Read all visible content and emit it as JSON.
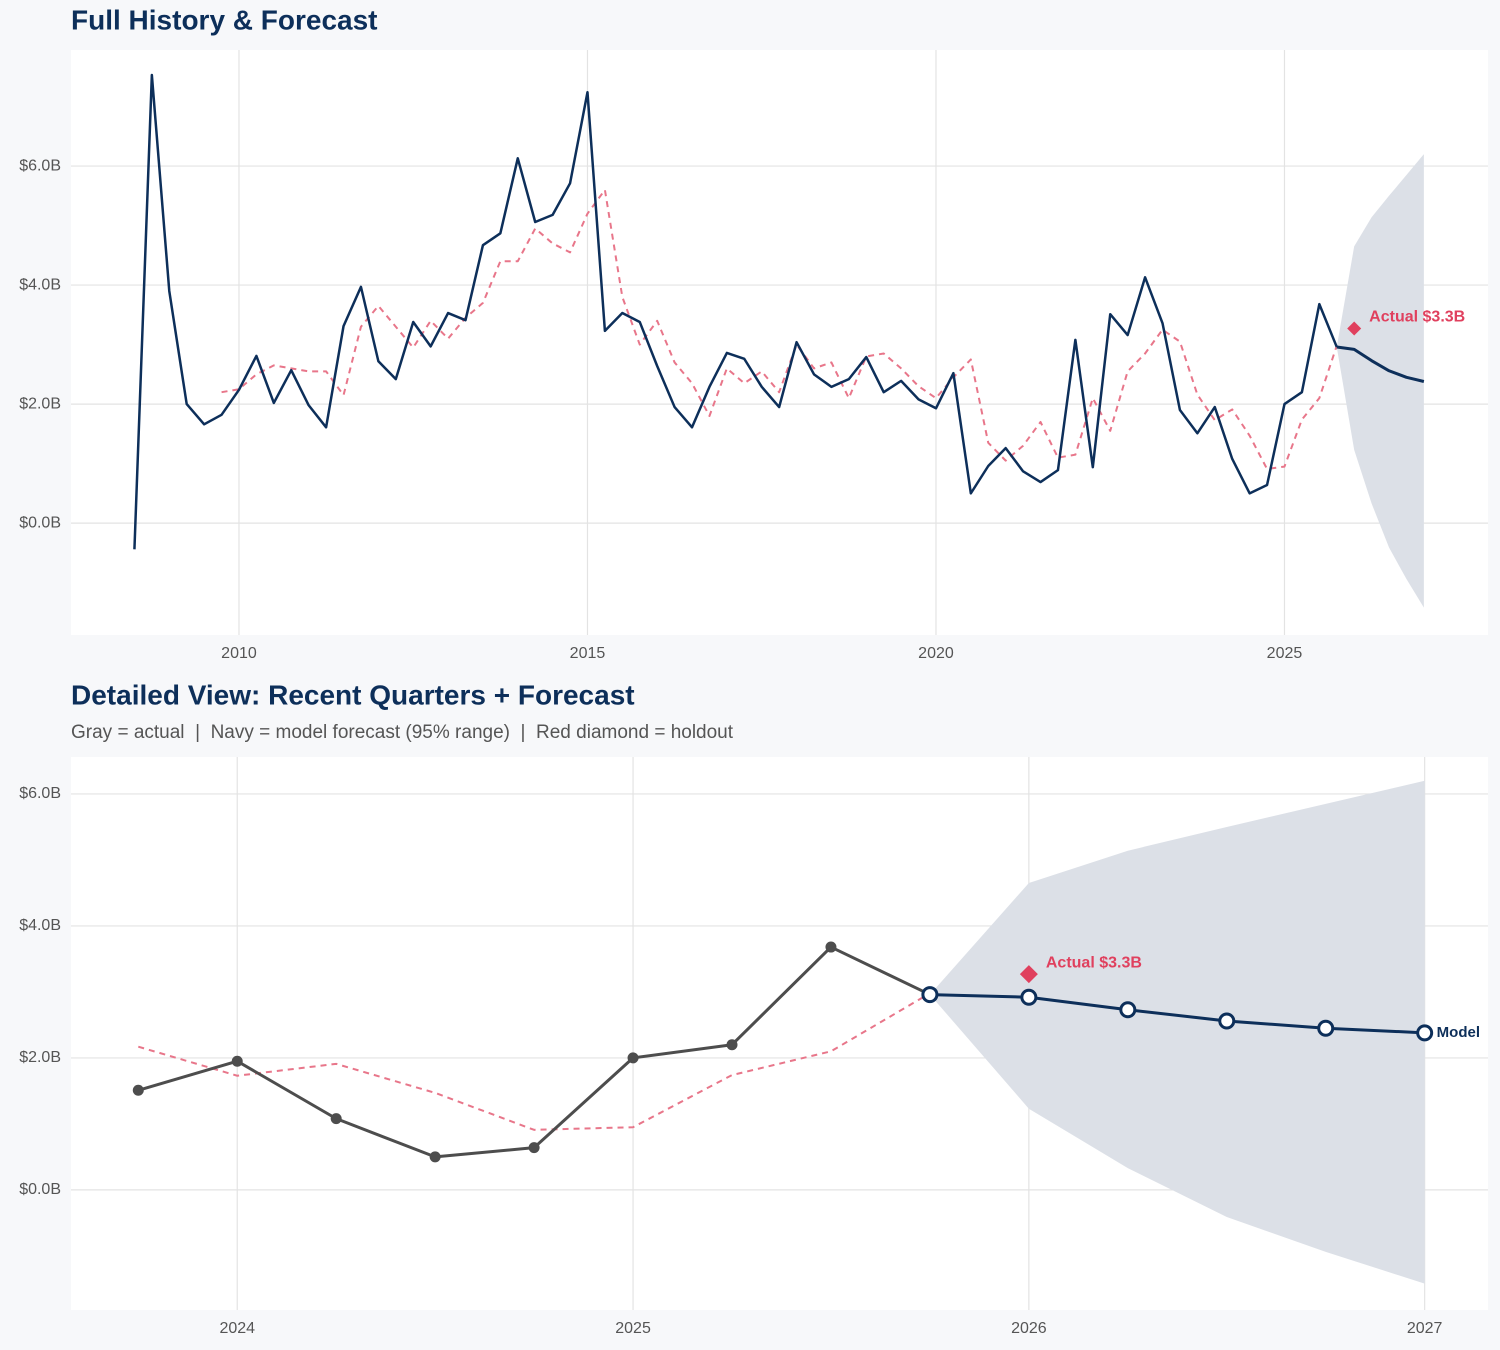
{
  "chart_data": [
    {
      "type": "line",
      "title": "Full History & Forecast",
      "xlim": [
        2007.59,
        2027.92
      ],
      "xticks": [
        2010,
        2015,
        2020,
        2025
      ],
      "ylim": [
        -1.88,
        7.95
      ],
      "yticks": [
        {
          "value": 0,
          "label": "$0.0B"
        },
        {
          "value": 2,
          "label": "$2.0B"
        },
        {
          "value": 4,
          "label": "$4.0B"
        },
        {
          "value": 6,
          "label": "$6.0B"
        }
      ],
      "grid": true,
      "band": {
        "color": "#dce0e7",
        "x": [
          2025.75,
          2026,
          2026.25,
          2026.5,
          2026.75,
          2027
        ],
        "upper": [
          2.96,
          4.65,
          5.14,
          5.5,
          5.85,
          6.2
        ],
        "lower": [
          2.96,
          1.23,
          0.33,
          -0.41,
          -0.94,
          -1.42
        ]
      },
      "series": [
        {
          "color": "#e8768a",
          "dash": true,
          "width": 2,
          "x": [
            2008.5,
            2008.75,
            2009,
            2009.25,
            2009.5,
            2009.75,
            2010,
            2010.25,
            2010.5,
            2010.75,
            2011,
            2011.25,
            2011.5,
            2011.75,
            2012,
            2012.25,
            2012.5,
            2012.75,
            2013,
            2013.25,
            2013.5,
            2013.75,
            2014,
            2014.25,
            2014.5,
            2014.75,
            2015,
            2015.25,
            2015.5,
            2015.75,
            2016,
            2016.25,
            2016.5,
            2016.75,
            2017,
            2017.25,
            2017.5,
            2017.75,
            2018,
            2018.25,
            2018.5,
            2018.75,
            2019,
            2019.25,
            2019.5,
            2019.75,
            2020,
            2020.25,
            2020.5,
            2020.75,
            2021,
            2021.25,
            2021.5,
            2021.75,
            2022,
            2022.25,
            2022.5,
            2022.75,
            2023,
            2023.25,
            2023.5,
            2023.75,
            2024,
            2024.25,
            2024.5,
            2024.75,
            2025,
            2025.25,
            2025.5,
            2025.75
          ],
          "values": [
            null,
            null,
            null,
            null,
            null,
            2.2,
            2.25,
            2.5,
            2.65,
            2.6,
            2.55,
            2.55,
            2.15,
            3.3,
            3.65,
            3.3,
            2.95,
            3.4,
            3.1,
            3.45,
            3.7,
            4.4,
            4.4,
            4.95,
            4.7,
            4.55,
            5.2,
            5.6,
            3.8,
            3.0,
            3.4,
            2.7,
            2.35,
            1.8,
            2.6,
            2.35,
            2.55,
            2.2,
            3.0,
            2.6,
            2.7,
            2.1,
            2.8,
            2.85,
            2.6,
            2.3,
            2.1,
            2.45,
            2.75,
            1.35,
            1.05,
            1.3,
            1.7,
            1.1,
            1.15,
            2.1,
            1.55,
            2.55,
            2.85,
            3.25,
            3.05,
            2.16,
            1.73,
            1.91,
            1.47,
            0.91,
            0.95,
            1.74,
            2.1,
            2.98
          ]
        },
        {
          "color": "#0d2f5a",
          "width": 2.5,
          "x": [
            2008.5,
            2008.75,
            2009,
            2009.25,
            2009.5,
            2009.75,
            2010,
            2010.25,
            2010.5,
            2010.75,
            2011,
            2011.25,
            2011.5,
            2011.75,
            2012,
            2012.25,
            2012.5,
            2012.75,
            2013,
            2013.25,
            2013.5,
            2013.75,
            2014,
            2014.25,
            2014.5,
            2014.75,
            2015,
            2015.25,
            2015.5,
            2015.75,
            2016,
            2016.25,
            2016.5,
            2016.75,
            2017,
            2017.25,
            2017.5,
            2017.75,
            2018,
            2018.25,
            2018.5,
            2018.75,
            2019,
            2019.25,
            2019.5,
            2019.75,
            2020,
            2020.25,
            2020.5,
            2020.75,
            2021,
            2021.25,
            2021.5,
            2021.75,
            2022,
            2022.25,
            2022.5,
            2022.75,
            2023,
            2023.25,
            2023.5,
            2023.75,
            2024,
            2024.25,
            2024.5,
            2024.75,
            2025,
            2025.25,
            2025.5,
            2025.75
          ],
          "values": [
            -0.44,
            7.53,
            3.9,
            2.0,
            1.66,
            1.82,
            2.24,
            2.81,
            2.02,
            2.57,
            1.98,
            1.61,
            3.31,
            3.97,
            2.72,
            2.42,
            3.38,
            2.97,
            3.53,
            3.41,
            4.67,
            4.87,
            6.13,
            5.06,
            5.18,
            5.71,
            7.24,
            3.23,
            3.53,
            3.38,
            2.64,
            1.95,
            1.61,
            2.29,
            2.86,
            2.76,
            2.29,
            1.95,
            3.04,
            2.5,
            2.29,
            2.42,
            2.79,
            2.2,
            2.39,
            2.08,
            1.93,
            2.52,
            0.5,
            0.96,
            1.26,
            0.87,
            0.69,
            0.89,
            3.08,
            0.94,
            3.51,
            3.16,
            4.13,
            3.36,
            1.9,
            1.51,
            1.95,
            1.08,
            0.5,
            0.64,
            2.0,
            2.2,
            3.68,
            2.96
          ]
        },
        {
          "color": "#0d2f5a",
          "width": 3,
          "x": [
            2025.75,
            2026,
            2026.25,
            2026.5,
            2026.75,
            2027
          ],
          "values": [
            2.96,
            2.92,
            2.73,
            2.56,
            2.45,
            2.38
          ]
        }
      ],
      "holdout": {
        "x": 2026,
        "value": 3.27,
        "color": "#e0405e",
        "label": "Actual $3.3B"
      }
    },
    {
      "type": "line",
      "title": "Detailed View: Recent Quarters + Forecast",
      "subtitle": "Gray = actual  |  Navy = model forecast (95% range)  |  Red diamond = holdout",
      "xlim": [
        2023.58,
        2027.16
      ],
      "xticks": [
        2024,
        2025,
        2026,
        2027
      ],
      "ylim": [
        -1.82,
        6.56
      ],
      "yticks": [
        {
          "value": 0,
          "label": "$0.0B"
        },
        {
          "value": 2,
          "label": "$2.0B"
        },
        {
          "value": 4,
          "label": "$4.0B"
        },
        {
          "value": 6,
          "label": "$6.0B"
        }
      ],
      "grid": true,
      "band": {
        "color": "#dce0e7",
        "x": [
          2025.75,
          2026,
          2026.25,
          2026.5,
          2026.75,
          2027
        ],
        "upper": [
          2.96,
          4.65,
          5.14,
          5.5,
          5.85,
          6.2
        ],
        "lower": [
          2.96,
          1.23,
          0.33,
          -0.41,
          -0.94,
          -1.42
        ]
      },
      "series": [
        {
          "color": "#e8768a",
          "dash": true,
          "width": 2,
          "x": [
            2023.75,
            2024,
            2024.25,
            2024.5,
            2024.75,
            2025,
            2025.25,
            2025.5,
            2025.75
          ],
          "values": [
            2.17,
            1.73,
            1.91,
            1.47,
            0.91,
            0.95,
            1.74,
            2.1,
            2.98
          ]
        },
        {
          "color": "#4d4d4d",
          "width": 3,
          "markers": "filled",
          "x": [
            2023.75,
            2024,
            2024.25,
            2024.5,
            2024.75,
            2025,
            2025.25,
            2025.5,
            2025.75
          ],
          "values": [
            1.51,
            1.95,
            1.08,
            0.5,
            0.64,
            2.0,
            2.2,
            3.68,
            2.96
          ]
        },
        {
          "color": "#0d2f5a",
          "width": 3,
          "markers": "open",
          "label": "Model",
          "x": [
            2025.75,
            2026,
            2026.25,
            2026.5,
            2026.75,
            2027
          ],
          "values": [
            2.96,
            2.92,
            2.73,
            2.56,
            2.45,
            2.38
          ]
        }
      ],
      "holdout": {
        "x": 2026,
        "value": 3.27,
        "color": "#e0405e",
        "label": "Actual $3.3B"
      }
    }
  ]
}
